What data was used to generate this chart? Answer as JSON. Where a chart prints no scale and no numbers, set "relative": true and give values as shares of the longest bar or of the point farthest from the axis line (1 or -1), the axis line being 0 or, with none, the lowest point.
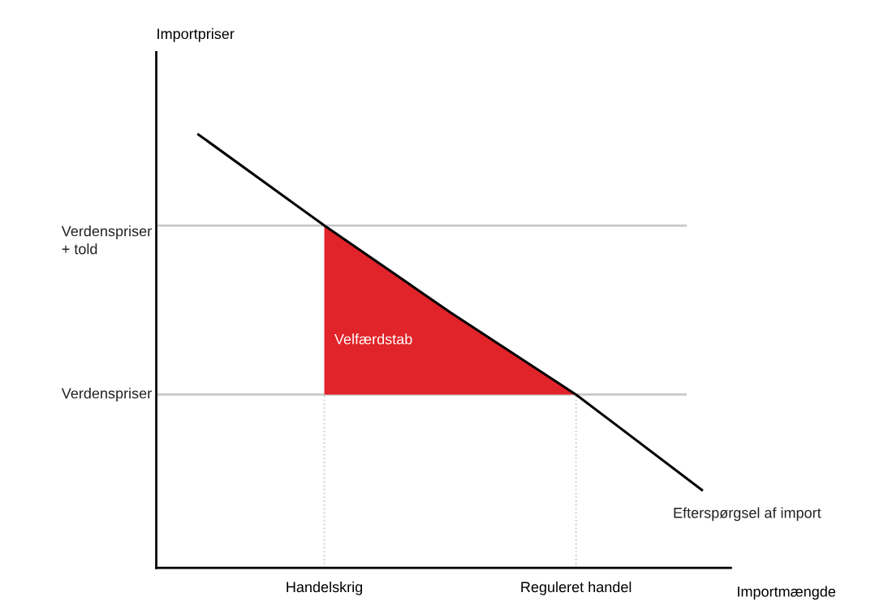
{
  "chart_data": {
    "type": "line",
    "relative": true,
    "xlabel": "Importmængde",
    "annotations": [
      "Importpriser"
    ],
    "categories": [
      null,
      "Handelskrig",
      null,
      "Reguleret handel",
      null
    ],
    "series": [
      {
        "name": "Velfærdstab",
        "type": "area",
        "color": "#e0242a",
        "values": [
          null,
          0.79,
          0.59,
          0.4,
          null
        ]
      },
      {
        "name": "Efterspørgsel af import",
        "color": "#000000",
        "values": [
          1.0,
          0.79,
          0.59,
          0.4,
          0.18
        ]
      }
    ],
    "ref_lines": [
      {
        "axis": "y",
        "value": 0.79,
        "label": "Verdenspriser\n+ told",
        "color": "#c8c8c8"
      },
      {
        "axis": "y",
        "value": 0.4,
        "label": "Verdenspriser",
        "color": "#c8c8c8"
      },
      {
        "axis": "x",
        "value": "Handelskrig",
        "label": null,
        "color": "#c8c8c8",
        "line_style": "dotted"
      },
      {
        "axis": "x",
        "value": "Reguleret handel",
        "label": null,
        "color": "#c8c8c8",
        "line_style": "dotted"
      }
    ],
    "grid": false,
    "legend": false
  }
}
